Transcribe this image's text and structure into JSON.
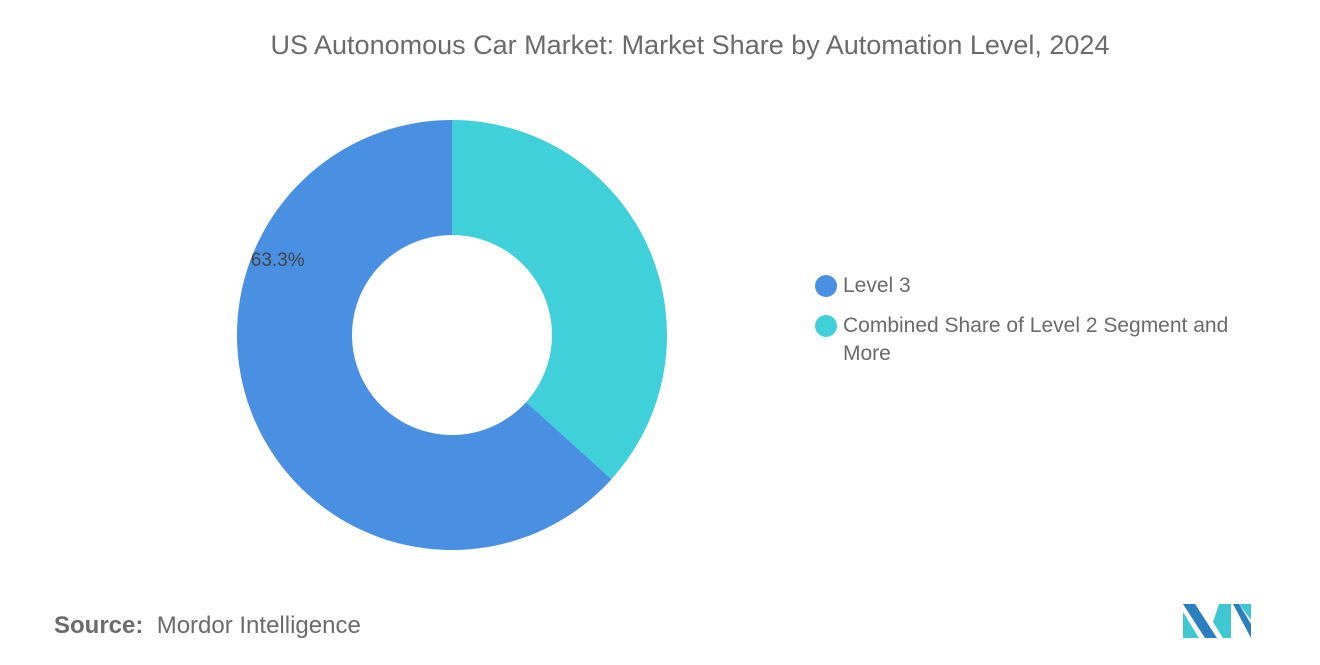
{
  "chart_data": {
    "type": "pie",
    "donut": true,
    "title": "US Autonomous Car Market: Market Share by Automation Level, 2024",
    "slices": [
      {
        "name": "Level 3",
        "value": 63.3,
        "label": "63.3%",
        "color": "#4a90e2"
      },
      {
        "name": "Combined Share of Level 2 Segment and More",
        "value": 36.7,
        "label": "",
        "color": "#40d0da"
      }
    ],
    "legend_position": "right"
  },
  "source": {
    "label": "Source:",
    "value": "Mordor Intelligence"
  },
  "logo": {
    "name": "mordor-intelligence-logo",
    "colors": [
      "#2b7fc1",
      "#40c8d2"
    ]
  }
}
